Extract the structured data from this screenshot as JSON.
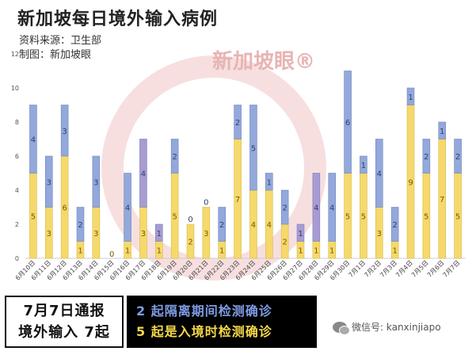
{
  "header": {
    "title": "新加坡每日境外输入病例",
    "source": "资料来源：卫生部",
    "made_by": "制图：新加坡眼"
  },
  "watermark": {
    "text": "新加坡眼®",
    "color": "#e8242a"
  },
  "footer": {
    "box_line1": "7月7日通报",
    "box_line2": "境外输入 7起",
    "stat_line1": "2 起隔离期间检测确诊",
    "stat_line2": "5 起是入境时检测确诊",
    "stat_color1": "#7f9ce6",
    "stat_color2": "#f5d84a",
    "wechat": "微信号: kanxinjiapo"
  },
  "chart_data": {
    "type": "bar",
    "stacked": true,
    "title": "新加坡每日境外输入病例",
    "xlabel": "",
    "ylabel": "",
    "ylim": [
      0,
      12
    ],
    "yticks": [
      0,
      2,
      4,
      6,
      8,
      10,
      12
    ],
    "grid": false,
    "colors": {
      "yellow": "#f6d96b",
      "blue": "#93a8db",
      "purple": "#a99bd2"
    },
    "categories": [
      "6月10日",
      "6月11日",
      "6月12日",
      "6月13日",
      "6月14日",
      "6月15日",
      "6月16日",
      "6月17日",
      "6月18日",
      "6月19日",
      "6月20日",
      "6月21日",
      "6月22日",
      "6月23日",
      "6月24日",
      "6月25日",
      "6月26日",
      "6月27日",
      "6月28日",
      "6月29日",
      "6月30日",
      "7月1日",
      "7月2日",
      "7月3日",
      "7月4日",
      "7月5日",
      "7月6日",
      "7月7日"
    ],
    "series": [
      {
        "color_key": "yellow",
        "values": [
          5,
          3,
          6,
          1,
          3,
          0,
          1,
          3,
          1,
          5,
          2,
          3,
          1,
          7,
          4,
          4,
          2,
          1,
          1,
          1,
          5,
          5,
          3,
          1,
          9,
          5,
          7,
          5
        ]
      },
      {
        "color_key": "blue",
        "values": [
          4,
          3,
          3,
          2,
          3,
          0,
          4,
          4,
          1,
          2,
          0,
          0,
          2,
          2,
          5,
          1,
          2,
          1,
          4,
          4,
          6,
          1,
          4,
          2,
          1,
          2,
          1,
          2
        ]
      }
    ],
    "bar_labels": [
      [
        "5",
        "4"
      ],
      [
        "3",
        "3"
      ],
      [
        "6",
        "3"
      ],
      [
        "1",
        "2"
      ],
      [
        "3",
        "3"
      ],
      [
        "0",
        ""
      ],
      [
        "1",
        "4"
      ],
      [
        "3",
        "4"
      ],
      [
        "1",
        "1"
      ],
      [
        "5",
        "2"
      ],
      [
        "2",
        "0"
      ],
      [
        "3",
        "0"
      ],
      [
        "1",
        "2"
      ],
      [
        "7",
        "2"
      ],
      [
        "4",
        "5"
      ],
      [
        "4",
        "1"
      ],
      [
        "2",
        "2"
      ],
      [
        "1",
        "1"
      ],
      [
        "1",
        "4"
      ],
      [
        "1",
        "4"
      ],
      [
        "5",
        "6"
      ],
      [
        "5",
        "1"
      ],
      [
        "3",
        "4"
      ],
      [
        "1",
        "2"
      ],
      [
        "9",
        "1"
      ],
      [
        "5",
        "2"
      ],
      [
        "7",
        "1"
      ],
      [
        "5",
        "2"
      ]
    ],
    "purple_days": [
      "6月17日",
      "6月18日",
      "6月27日",
      "6月28日"
    ]
  }
}
